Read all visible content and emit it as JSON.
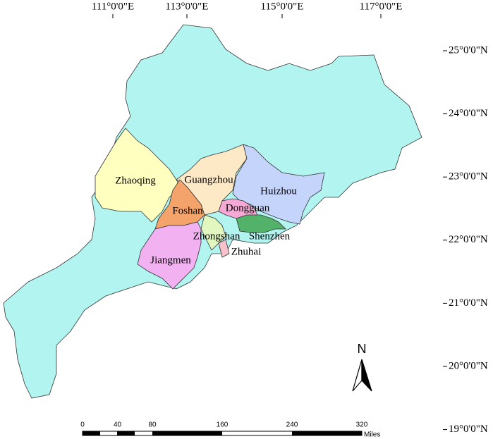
{
  "longitude_labels": [
    "111°0'0\"E",
    "113°0'0\"E",
    "115°0'0\"E",
    "117°0'0\"E"
  ],
  "latitude_labels": [
    "25°0'0\"N",
    "24°0'0\"N",
    "23°0'0\"N",
    "22°0'0\"N",
    "21°0'0\"N",
    "20°0'0\"N",
    "19°0'0\"N"
  ],
  "regions": [
    "Zhaoqing",
    "Guangzhou",
    "Huizhou",
    "Foshan",
    "Dongguan",
    "Zhongshan",
    "Shenzhen",
    "Zhuhai",
    "Jiangmen"
  ],
  "north_arrow": "N",
  "scale_bar": {
    "ticks": [
      "0",
      "40",
      "80",
      "160",
      "240",
      "320"
    ],
    "unit": "Miles"
  }
}
